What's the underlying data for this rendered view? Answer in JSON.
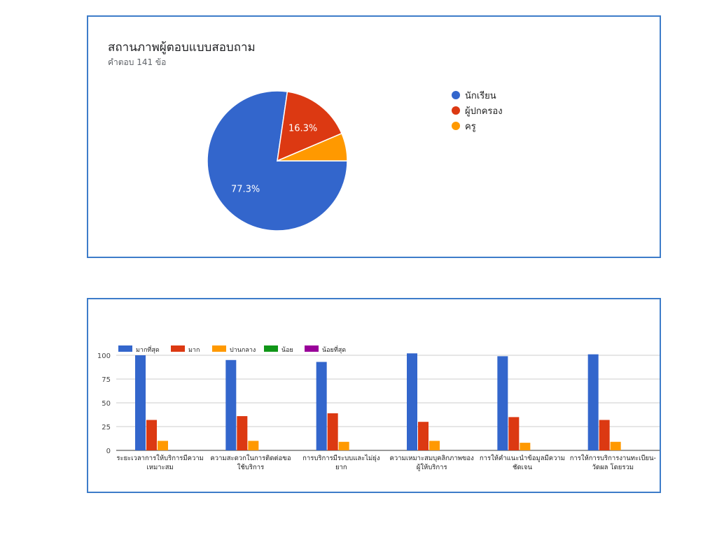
{
  "pie": {
    "title": "สถานภาพผู้ตอบแบบสอบถาม",
    "subtitle": "คำตอบ 141 ข้อ"
  },
  "chart_data": [
    {
      "type": "pie",
      "title": "สถานภาพผู้ตอบแบบสอบถาม",
      "subtitle": "คำตอบ 141 ข้อ",
      "labels": [
        "นักเรียน",
        "ผู้ปกครอง",
        "ครู"
      ],
      "values": [
        77.3,
        16.3,
        6.4
      ],
      "data_labels": [
        "77.3%",
        "16.3%",
        ""
      ],
      "colors": [
        "#3366cc",
        "#dc3912",
        "#ff9900"
      ],
      "legend": "right"
    },
    {
      "type": "bar",
      "categories": [
        [
          "ระยะเวลาการให้บริการมีความ",
          "เหมาะสม"
        ],
        [
          "ความสะดวกในการติดต่อขอ",
          "ใช้บริการ"
        ],
        [
          "การบริการมีระบบและไม่ยุ่ง",
          "ยาก"
        ],
        [
          "ความเหมาะสมบุคลิกภาพของ",
          "ผู้ให้บริการ"
        ],
        [
          "การให้คำแนะนำข้อมูลมีความ",
          "ชัดเจน"
        ],
        [
          "การให้การบริการงานทะเบียน-",
          "วัดผล โดยรวม"
        ]
      ],
      "series": [
        {
          "name": "มากที่สุด",
          "color": "#3366cc",
          "values": [
            100,
            95,
            93,
            102,
            99,
            101
          ]
        },
        {
          "name": "มาก",
          "color": "#dc3912",
          "values": [
            32,
            36,
            39,
            30,
            35,
            32
          ]
        },
        {
          "name": "ปานกลาง",
          "color": "#ff9900",
          "values": [
            10,
            10,
            9,
            10,
            8,
            9
          ]
        },
        {
          "name": "น้อย",
          "color": "#109618",
          "values": [
            0,
            0,
            0,
            0,
            0,
            0
          ]
        },
        {
          "name": "น้อยที่สุด",
          "color": "#990099",
          "values": [
            0,
            0,
            0,
            0,
            0,
            0
          ]
        }
      ],
      "yticks": [
        0,
        25,
        50,
        75,
        100
      ],
      "ylim": [
        0,
        100
      ],
      "grid": true,
      "legend": "top"
    }
  ]
}
